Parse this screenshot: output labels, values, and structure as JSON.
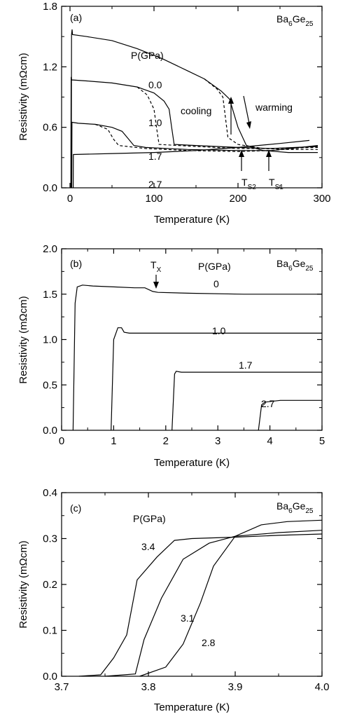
{
  "chart_data": [
    {
      "type": "line",
      "panel_label": "(a)",
      "xlabel": "Temperature (K)",
      "ylabel": "Resistivity (mΩcm)",
      "xlim": [
        -10,
        300
      ],
      "ylim": [
        0,
        1.8
      ],
      "xticks": [
        "0",
        "100",
        "200",
        "300"
      ],
      "yticks": [
        "0.0",
        "0.6",
        "1.2",
        "1.8"
      ],
      "sample": {
        "base": "Ba",
        "sub1": "6",
        "mid": "Ge",
        "sub2": "25"
      },
      "legend_title": "P(GPa)",
      "annotations": {
        "cooling": "cooling",
        "warming": "warming",
        "ts2": "T",
        "ts2_sub": "S2",
        "ts1": "T",
        "ts1_sub": "S1"
      },
      "series": [
        {
          "name": "0.0",
          "dashed": false,
          "points": [
            [
              1.5,
              0
            ],
            [
              1.8,
              1.52
            ],
            [
              2.5,
              1.57
            ],
            [
              3,
              1.52
            ],
            [
              20,
              1.5
            ],
            [
              50,
              1.46
            ],
            [
              80,
              1.38
            ],
            [
              110,
              1.28
            ],
            [
              140,
              1.16
            ],
            [
              160,
              1.08
            ],
            [
              180,
              0.96
            ],
            [
              190,
              0.88
            ],
            [
              200,
              0.6
            ],
            [
              210,
              0.42
            ],
            [
              230,
              0.37
            ],
            [
              260,
              0.35
            ],
            [
              295,
              0.35
            ]
          ]
        },
        {
          "name": "0.0",
          "dashed": true,
          "points": [
            [
              160,
              1.08
            ],
            [
              175,
              0.98
            ],
            [
              182,
              0.9
            ],
            [
              185,
              0.7
            ],
            [
              188,
              0.5
            ],
            [
              200,
              0.43
            ],
            [
              230,
              0.39
            ],
            [
              260,
              0.38
            ],
            [
              295,
              0.38
            ]
          ]
        },
        {
          "name": "1.0",
          "dashed": false,
          "points": [
            [
              1,
              0
            ],
            [
              1.3,
              1.1
            ],
            [
              2,
              1.07
            ],
            [
              20,
              1.06
            ],
            [
              50,
              1.04
            ],
            [
              80,
              1.0
            ],
            [
              100,
              0.94
            ],
            [
              112,
              0.86
            ],
            [
              118,
              0.78
            ],
            [
              121,
              0.6
            ],
            [
              124,
              0.43
            ],
            [
              150,
              0.42
            ],
            [
              200,
              0.4
            ],
            [
              240,
              0.39
            ],
            [
              295,
              0.41
            ]
          ]
        },
        {
          "name": "1.0",
          "dashed": true,
          "points": [
            [
              80,
              1.0
            ],
            [
              92,
              0.92
            ],
            [
              100,
              0.78
            ],
            [
              103,
              0.6
            ],
            [
              106,
              0.43
            ],
            [
              150,
              0.41
            ],
            [
              200,
              0.39
            ],
            [
              240,
              0.39
            ],
            [
              295,
              0.4
            ]
          ]
        },
        {
          "name": "1.7",
          "dashed": false,
          "points": [
            [
              2.1,
              0
            ],
            [
              2.3,
              0.65
            ],
            [
              10,
              0.64
            ],
            [
              30,
              0.63
            ],
            [
              50,
              0.6
            ],
            [
              62,
              0.56
            ],
            [
              70,
              0.48
            ],
            [
              76,
              0.42
            ],
            [
              90,
              0.4
            ],
            [
              140,
              0.38
            ],
            [
              200,
              0.37
            ],
            [
              240,
              0.37
            ],
            [
              295,
              0.42
            ]
          ]
        },
        {
          "name": "1.7",
          "dashed": true,
          "points": [
            [
              30,
              0.63
            ],
            [
              45,
              0.58
            ],
            [
              52,
              0.48
            ],
            [
              58,
              0.42
            ],
            [
              90,
              0.39
            ],
            [
              140,
              0.37
            ],
            [
              200,
              0.36
            ],
            [
              240,
              0.37
            ],
            [
              295,
              0.41
            ]
          ]
        },
        {
          "name": "2.7",
          "dashed": false,
          "points": [
            [
              3.8,
              0
            ],
            [
              4,
              0.33
            ],
            [
              50,
              0.34
            ],
            [
              100,
              0.35
            ],
            [
              150,
              0.37
            ],
            [
              200,
              0.4
            ],
            [
              250,
              0.44
            ],
            [
              285,
              0.47
            ]
          ]
        }
      ]
    },
    {
      "type": "line",
      "panel_label": "(b)",
      "xlabel": "Temperature (K)",
      "ylabel": "Resistivity (mΩcm)",
      "xlim": [
        0,
        5
      ],
      "ylim": [
        0,
        2.0
      ],
      "xticks": [
        "0",
        "1",
        "2",
        "3",
        "4",
        "5"
      ],
      "yticks": [
        "0.0",
        "0.5",
        "1.0",
        "1.5",
        "2.0"
      ],
      "sample": {
        "base": "Ba",
        "sub1": "6",
        "mid": "Ge",
        "sub2": "25"
      },
      "legend_title": "P(GPa)",
      "annotations": {
        "tx": "T",
        "tx_sub": "X"
      },
      "series": [
        {
          "name": "0",
          "points": [
            [
              0.22,
              0
            ],
            [
              0.26,
              1.4
            ],
            [
              0.3,
              1.58
            ],
            [
              0.4,
              1.6
            ],
            [
              0.6,
              1.59
            ],
            [
              1.0,
              1.58
            ],
            [
              1.4,
              1.57
            ],
            [
              1.6,
              1.57
            ],
            [
              1.75,
              1.53
            ],
            [
              1.85,
              1.52
            ],
            [
              2.5,
              1.51
            ],
            [
              3.5,
              1.5
            ],
            [
              4.5,
              1.5
            ],
            [
              5,
              1.5
            ]
          ]
        },
        {
          "name": "1.0",
          "points": [
            [
              0.95,
              0
            ],
            [
              1.0,
              1.0
            ],
            [
              1.08,
              1.13
            ],
            [
              1.15,
              1.13
            ],
            [
              1.2,
              1.08
            ],
            [
              1.3,
              1.07
            ],
            [
              2,
              1.07
            ],
            [
              3,
              1.07
            ],
            [
              4,
              1.07
            ],
            [
              5,
              1.07
            ]
          ]
        },
        {
          "name": "1.7",
          "points": [
            [
              2.12,
              0
            ],
            [
              2.17,
              0.62
            ],
            [
              2.2,
              0.65
            ],
            [
              2.3,
              0.64
            ],
            [
              3,
              0.64
            ],
            [
              4,
              0.64
            ],
            [
              5,
              0.64
            ]
          ]
        },
        {
          "name": "2.7",
          "points": [
            [
              3.78,
              0
            ],
            [
              3.84,
              0.28
            ],
            [
              3.9,
              0.31
            ],
            [
              4.2,
              0.33
            ],
            [
              5,
              0.33
            ]
          ]
        }
      ]
    },
    {
      "type": "line",
      "panel_label": "(c)",
      "xlabel": "Temperature (K)",
      "ylabel": "Resistivity (mΩcm)",
      "xlim": [
        3.7,
        4.0
      ],
      "ylim": [
        0,
        0.4
      ],
      "xticks": [
        "3.7",
        "3.8",
        "3.9",
        "4.0"
      ],
      "yticks": [
        "0.0",
        "0.1",
        "0.2",
        "0.3",
        "0.4"
      ],
      "sample": {
        "base": "Ba",
        "sub1": "6",
        "mid": "Ge",
        "sub2": "25"
      },
      "legend_title": "P(GPa)",
      "series": [
        {
          "name": "3.4",
          "points": [
            [
              3.72,
              0
            ],
            [
              3.745,
              0.003
            ],
            [
              3.76,
              0.04
            ],
            [
              3.775,
              0.09
            ],
            [
              3.787,
              0.21
            ],
            [
              3.81,
              0.26
            ],
            [
              3.83,
              0.296
            ],
            [
              3.85,
              0.3
            ],
            [
              3.9,
              0.303
            ],
            [
              3.95,
              0.307
            ],
            [
              4.0,
              0.31
            ]
          ]
        },
        {
          "name": "3.1",
          "points": [
            [
              3.75,
              0
            ],
            [
              3.785,
              0.005
            ],
            [
              3.795,
              0.08
            ],
            [
              3.815,
              0.17
            ],
            [
              3.84,
              0.255
            ],
            [
              3.87,
              0.29
            ],
            [
              3.9,
              0.305
            ],
            [
              3.95,
              0.313
            ],
            [
              4.0,
              0.318
            ]
          ]
        },
        {
          "name": "2.8",
          "points": [
            [
              3.79,
              0
            ],
            [
              3.82,
              0.02
            ],
            [
              3.84,
              0.07
            ],
            [
              3.86,
              0.16
            ],
            [
              3.875,
              0.24
            ],
            [
              3.9,
              0.305
            ],
            [
              3.93,
              0.33
            ],
            [
              3.96,
              0.337
            ],
            [
              4.0,
              0.34
            ]
          ]
        }
      ]
    }
  ]
}
